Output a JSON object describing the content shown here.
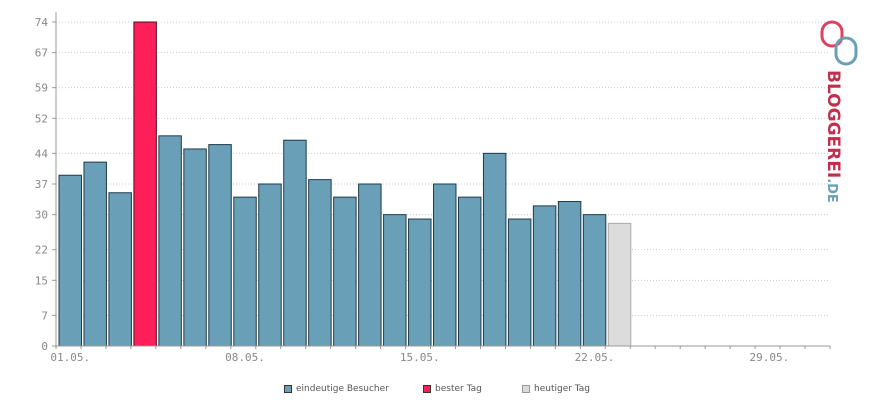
{
  "chart_data": {
    "type": "bar",
    "title": "",
    "xlabel": "",
    "ylabel": "",
    "ylim": [
      0,
      74
    ],
    "yticks": [
      0,
      7,
      15,
      22,
      30,
      37,
      44,
      52,
      59,
      67,
      74
    ],
    "grid": true,
    "legend_position": "bottom",
    "x_tick_labels": [
      "01.05.",
      "08.05.",
      "15.05.",
      "22.05.",
      "29.05."
    ],
    "x_tick_indices": [
      1,
      8,
      15,
      22,
      29
    ],
    "days_in_axis": 31,
    "series": [
      {
        "name": "eindeutige Besucher",
        "color": "#6a9fb8",
        "values": [
          39,
          42,
          35,
          74,
          48,
          45,
          46,
          34,
          37,
          47,
          38,
          34,
          37,
          30,
          29,
          37,
          34,
          44,
          29,
          32,
          33,
          30,
          28
        ]
      },
      {
        "name": "bester Tag",
        "color": "#ff1f58"
      },
      {
        "name": "heutiger Tag",
        "color": "#dcdcdc"
      }
    ],
    "best_day_index": 3,
    "today_index": 22
  },
  "logo": {
    "text_main": "BLOGGEREI",
    "text_suffix": ".DE",
    "color_main": "#c0304e",
    "color_suffix": "#6a9fb8"
  }
}
